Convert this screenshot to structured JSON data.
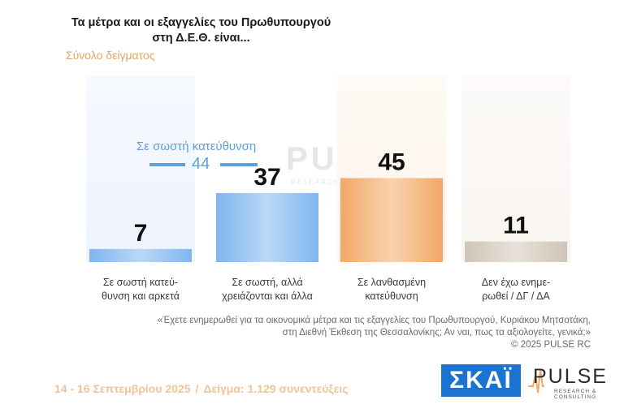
{
  "title_line1": "Τα μέτρα και οι εξαγγελίες του Πρωθυπουργού",
  "title_line2": "στη Δ.Ε.Θ. είναι...",
  "subtitle": "Σύνολο δείγματος",
  "annotation": {
    "label": "Σε σωστή κατεύθυνση",
    "value": "44"
  },
  "watermark": {
    "text": "PULSE",
    "sub": "RESEARCH & CONSULTING"
  },
  "question_line1": "«Έχετε ενημερωθεί για τα οικονομικά μέτρα και τις εξαγγελίες του Πρωθυπουργού, Κυριάκου Μητσοτάκη,",
  "question_line2": "στη Διεθνή Έκθεση της Θεσσαλονίκης; Αν ναι, πως τα αξιολογείτε, γενικά;»",
  "copyright": "©  2025  PULSE RC",
  "footer": {
    "dates": "14 - 16 Σεπτεμβρίου 2025",
    "separator": "/",
    "sample": "Δείγμα:  1.129 συνεντεύξεις"
  },
  "logos": {
    "skai": "ΣΚΑΪ",
    "pulse": "PULSE",
    "pulse_sub": "RESEARCH & CONSULTING"
  },
  "colors": {
    "blue": "#5a9fe0",
    "orange": "#f0a868",
    "gray": "#c9bfb3",
    "text_orange": "#e8a45a"
  },
  "chart_data": {
    "type": "bar",
    "categories": [
      [
        "Σε σωστή κατεύ-",
        "θυνση και αρκετά"
      ],
      [
        "Σε σωστή, αλλά",
        "χρειάζονται και άλλα"
      ],
      [
        "Σε λανθασμένη",
        "κατεύθυνση"
      ],
      [
        "Δεν έχω ενημε-",
        "ρωθεί / ΔΓ / ΔΑ"
      ]
    ],
    "values": [
      7,
      37,
      45,
      11
    ],
    "ylim": [
      0,
      100
    ],
    "grid": false,
    "legend": "none"
  }
}
